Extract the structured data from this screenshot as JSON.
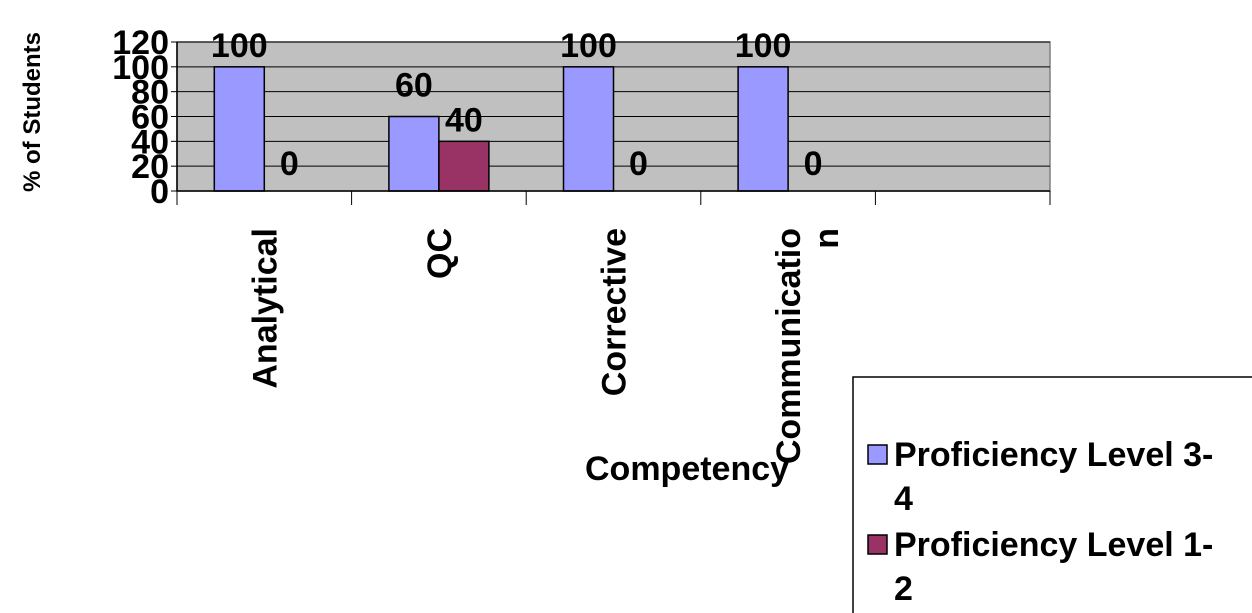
{
  "chart_data": {
    "type": "bar",
    "categories": [
      "Analytical",
      "QC",
      "Corrective",
      "Communicatio\nn",
      ""
    ],
    "series": [
      {
        "name": "Proficiency Level 3-4",
        "values": [
          100,
          60,
          100,
          100,
          null
        ],
        "color": "#9999FF",
        "data_labels": [
          "100",
          "60",
          "100",
          "100",
          ""
        ]
      },
      {
        "name": "Proficiency Level 1-2",
        "values": [
          0,
          40,
          0,
          0,
          null
        ],
        "color": "#993366",
        "data_labels": [
          "0",
          "40",
          "0",
          "0",
          ""
        ]
      }
    ],
    "ylim": [
      0,
      120
    ],
    "y_ticks": [
      "0",
      "20",
      "40",
      "60",
      "80",
      "100",
      "120"
    ],
    "xlabel": "Competency",
    "ylabel": "% of Students",
    "plot_background": "#C0C0C0",
    "grid": true,
    "legend_position": "bottom-right"
  }
}
